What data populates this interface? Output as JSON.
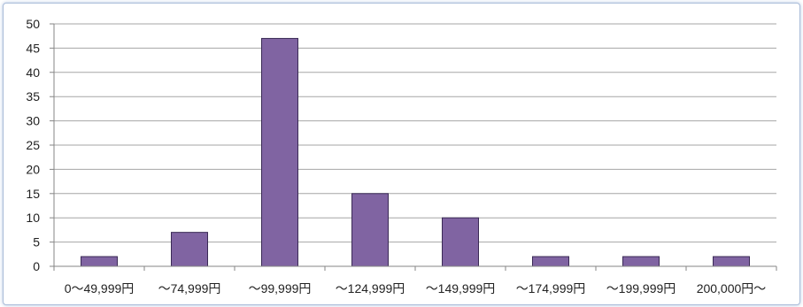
{
  "chart_data": {
    "type": "bar",
    "title": "",
    "xlabel": "",
    "ylabel": "",
    "categories": [
      "0～49,999円",
      "～74,999円",
      "～99,999円",
      "～124,999円",
      "～149,999円",
      "～174,999円",
      "～199,999円",
      "200,000円～"
    ],
    "values": [
      2,
      7,
      47,
      15,
      10,
      2,
      2,
      2
    ],
    "ylim": [
      0,
      50
    ],
    "yticks": [
      0,
      5,
      10,
      15,
      20,
      25,
      30,
      35,
      40,
      45,
      50
    ],
    "grid": true,
    "legend": "none",
    "colors": {
      "bar_fill": "#8064a2",
      "bar_stroke": "#3a2a55",
      "gridline": "#a6a6a6",
      "axis": "#868686"
    }
  }
}
